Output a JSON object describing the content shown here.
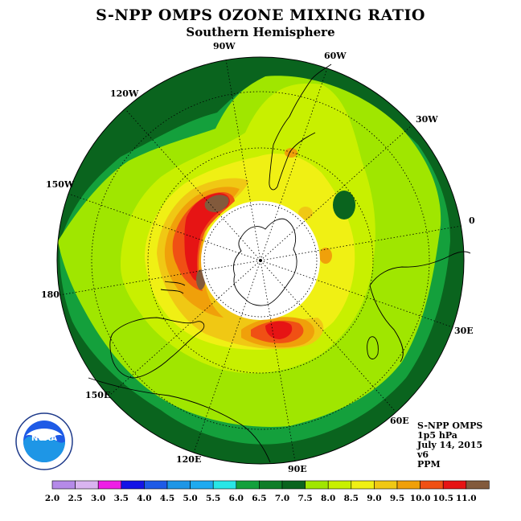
{
  "title": "S-NPP OMPS OZONE MIXING RATIO",
  "subtitle": "Southern Hemisphere",
  "meridian_labels": [
    {
      "name": "lon-label-90w",
      "text": "90W"
    },
    {
      "name": "lon-label-60w",
      "text": "60W"
    },
    {
      "name": "lon-label-30w",
      "text": "30W"
    },
    {
      "name": "lon-label-0",
      "text": "0"
    },
    {
      "name": "lon-label-30e",
      "text": "30E"
    },
    {
      "name": "lon-label-60e",
      "text": "60E"
    },
    {
      "name": "lon-label-90e",
      "text": "90E"
    },
    {
      "name": "lon-label-120e",
      "text": "120E"
    },
    {
      "name": "lon-label-150e",
      "text": "150E"
    },
    {
      "name": "lon-label-180",
      "text": "180"
    },
    {
      "name": "lon-label-150w",
      "text": "150W"
    },
    {
      "name": "lon-label-120w",
      "text": "120W"
    }
  ],
  "info": {
    "instrument": "S-NPP OMPS",
    "level": "1p5 hPa",
    "date": "July 14, 2015",
    "version": "v6",
    "units": "PPM"
  },
  "logo": {
    "text": "NOAA",
    "ring_text": "NATIONAL OCEANIC AND ATMOSPHERIC ADMINISTRATION"
  },
  "colorbar": {
    "ticks": [
      "2.0",
      "2.5",
      "3.0",
      "3.5",
      "4.0",
      "4.5",
      "5.0",
      "5.5",
      "6.0",
      "6.5",
      "7.0",
      "7.5",
      "8.0",
      "8.5",
      "9.0",
      "9.5",
      "10.0",
      "10.5",
      "11.0"
    ],
    "colors": [
      "#b58ae8",
      "#d9b4f0",
      "#ee1ee6",
      "#1414e6",
      "#1e5ae6",
      "#1e96e6",
      "#1eaaf0",
      "#28e6e6",
      "#14a03c",
      "#0f7d28",
      "#0a641e",
      "#a0e600",
      "#c8f000",
      "#f0f014",
      "#f0c814",
      "#f0a00a",
      "#f05014",
      "#e61414",
      "#825a3c"
    ]
  },
  "chart_data": {
    "type": "heatmap",
    "title": "S-NPP OMPS OZONE MIXING RATIO",
    "subtitle": "Southern Hemisphere",
    "units": "PPM",
    "level": "1p5 hPa",
    "date": "July 14, 2015",
    "projection": "south polar stereographic",
    "value_range": [
      2.0,
      11.0
    ],
    "legend_placement": "bottom",
    "features": [
      {
        "region": "outer band (tropics/subtropics)",
        "value_range": [
          6.5,
          7.0
        ]
      },
      {
        "region": "mid latitudes",
        "value_range": [
          7.5,
          8.0
        ]
      },
      {
        "region": "ring around polar night",
        "value_range": [
          8.0,
          10.5
        ]
      },
      {
        "region": "maximum near 120W-150W",
        "value_range": [
          10.5,
          11.0
        ]
      },
      {
        "region": "maximum near 170E-180",
        "value_range": [
          10.5,
          11.0
        ]
      },
      {
        "region": "maximum near 90E",
        "value_range": [
          10.0,
          10.5
        ]
      },
      {
        "region": "polar night (no data)",
        "value_range": null
      }
    ]
  }
}
